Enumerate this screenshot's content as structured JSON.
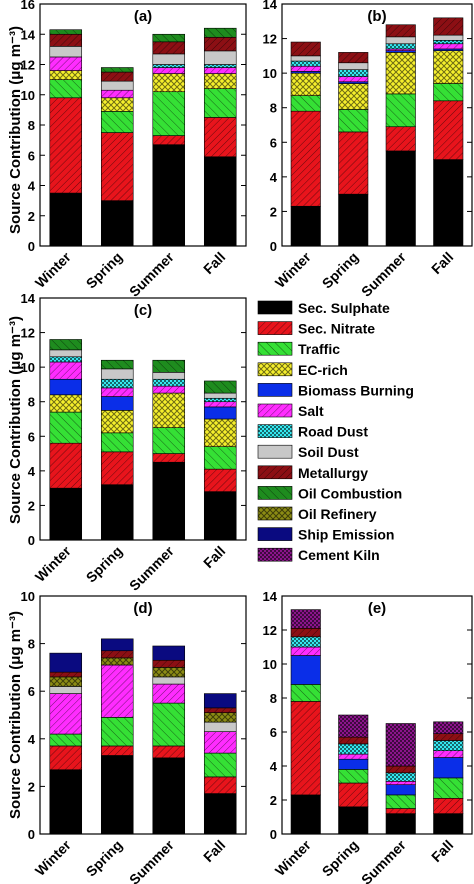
{
  "ylabel": "Source Contribution (μg m⁻³)",
  "colors": {
    "Sec. Sulphate": "#000000",
    "Sec. Nitrate": "#e8141c",
    "Traffic": "#35e035",
    "EC-rich": "#f5ef2c",
    "Biomass Burning": "#0a2ee8",
    "Salt": "#ff2cff",
    "Road Dust": "#34e8f0",
    "Soil Dust": "#c8c8c8",
    "Metallurgy": "#8c0f14",
    "Oil Combustion": "#1e8c1e",
    "Oil Refinery": "#8c8c14",
    "Ship Emission": "#0a0a80",
    "Cement Kiln": "#8c148c"
  },
  "legend": [
    "Sec. Sulphate",
    "Sec. Nitrate",
    "Traffic",
    "EC-rich",
    "Biomass Burning",
    "Salt",
    "Road Dust",
    "Soil Dust",
    "Metallurgy",
    "Oil Combustion",
    "Oil Refinery",
    "Ship Emission",
    "Cement Kiln"
  ],
  "chart_data": [
    {
      "type": "bar",
      "stacked": true,
      "title": "(a)",
      "ylabel": "Source Contribution (μg m⁻³)",
      "ylim": [
        0,
        16
      ],
      "yticks": [
        0,
        2,
        4,
        6,
        8,
        10,
        12,
        14,
        16
      ],
      "categories": [
        "Winter",
        "Spring",
        "Summer",
        "Fall"
      ],
      "series": [
        {
          "name": "Sec. Sulphate",
          "values": [
            3.5,
            3.0,
            6.7,
            5.9
          ]
        },
        {
          "name": "Sec. Nitrate",
          "values": [
            6.3,
            4.5,
            0.6,
            2.6
          ]
        },
        {
          "name": "Traffic",
          "values": [
            1.2,
            1.4,
            2.9,
            1.9
          ]
        },
        {
          "name": "EC-rich",
          "values": [
            0.6,
            0.9,
            1.2,
            1.0
          ]
        },
        {
          "name": "Salt",
          "values": [
            0.9,
            0.5,
            0.4,
            0.4
          ]
        },
        {
          "name": "Road Dust",
          "values": [
            0.0,
            0.0,
            0.2,
            0.2
          ]
        },
        {
          "name": "Soil Dust",
          "values": [
            0.7,
            0.6,
            0.7,
            0.9
          ]
        },
        {
          "name": "Metallurgy",
          "values": [
            0.8,
            0.6,
            0.8,
            0.9
          ]
        },
        {
          "name": "Oil Combustion",
          "values": [
            0.3,
            0.3,
            0.5,
            0.6
          ]
        }
      ]
    },
    {
      "type": "bar",
      "stacked": true,
      "title": "(b)",
      "ylabel": "",
      "ylim": [
        0,
        14
      ],
      "yticks": [
        0,
        2,
        4,
        6,
        8,
        10,
        12,
        14
      ],
      "categories": [
        "Winter",
        "Spring",
        "Summer",
        "Fall"
      ],
      "series": [
        {
          "name": "Sec. Sulphate",
          "values": [
            2.3,
            3.0,
            5.5,
            5.0
          ]
        },
        {
          "name": "Sec. Nitrate",
          "values": [
            5.5,
            3.6,
            1.4,
            3.4
          ]
        },
        {
          "name": "Traffic",
          "values": [
            0.9,
            1.3,
            1.9,
            1.0
          ]
        },
        {
          "name": "EC-rich",
          "values": [
            1.3,
            1.5,
            2.4,
            1.9
          ]
        },
        {
          "name": "Biomass Burning",
          "values": [
            0.1,
            0.1,
            0.1,
            0.1
          ]
        },
        {
          "name": "Salt",
          "values": [
            0.3,
            0.3,
            0.1,
            0.3
          ]
        },
        {
          "name": "Road Dust",
          "values": [
            0.3,
            0.4,
            0.3,
            0.2
          ]
        },
        {
          "name": "Soil Dust",
          "values": [
            0.3,
            0.4,
            0.4,
            0.3
          ]
        },
        {
          "name": "Metallurgy",
          "values": [
            0.8,
            0.6,
            0.7,
            1.0
          ]
        }
      ]
    },
    {
      "type": "bar",
      "stacked": true,
      "title": "(c)",
      "ylabel": "Source Contribution (μg m⁻³)",
      "ylim": [
        0,
        14
      ],
      "yticks": [
        0,
        2,
        4,
        6,
        8,
        10,
        12,
        14
      ],
      "categories": [
        "Winter",
        "Spring",
        "Summer",
        "Fall"
      ],
      "series": [
        {
          "name": "Sec. Sulphate",
          "values": [
            3.0,
            3.2,
            4.5,
            2.8
          ]
        },
        {
          "name": "Sec. Nitrate",
          "values": [
            2.6,
            1.9,
            0.5,
            1.3
          ]
        },
        {
          "name": "Traffic",
          "values": [
            1.8,
            1.1,
            1.5,
            1.3
          ]
        },
        {
          "name": "EC-rich",
          "values": [
            1.0,
            1.3,
            2.0,
            1.6
          ]
        },
        {
          "name": "Biomass Burning",
          "values": [
            0.9,
            0.8,
            0.0,
            0.7
          ]
        },
        {
          "name": "Salt",
          "values": [
            1.0,
            0.5,
            0.4,
            0.3
          ]
        },
        {
          "name": "Road Dust",
          "values": [
            0.3,
            0.5,
            0.4,
            0.2
          ]
        },
        {
          "name": "Soil Dust",
          "values": [
            0.4,
            0.6,
            0.4,
            0.3
          ]
        },
        {
          "name": "Oil Combustion",
          "values": [
            0.6,
            0.5,
            0.7,
            0.7
          ]
        }
      ]
    },
    {
      "type": "bar",
      "stacked": true,
      "title": "(d)",
      "ylabel": "Source Contribution (μg m⁻³)",
      "ylim": [
        0,
        10
      ],
      "yticks": [
        0,
        2,
        4,
        6,
        8,
        10
      ],
      "categories": [
        "Winter",
        "Spring",
        "Summer",
        "Fall"
      ],
      "series": [
        {
          "name": "Sec. Sulphate",
          "values": [
            2.7,
            3.3,
            3.2,
            1.7
          ]
        },
        {
          "name": "Sec. Nitrate",
          "values": [
            1.0,
            0.4,
            0.5,
            0.7
          ]
        },
        {
          "name": "Traffic",
          "values": [
            0.5,
            1.2,
            1.8,
            1.0
          ]
        },
        {
          "name": "Salt",
          "values": [
            1.7,
            2.2,
            0.8,
            0.9
          ]
        },
        {
          "name": "Soil Dust",
          "values": [
            0.3,
            0.0,
            0.3,
            0.4
          ]
        },
        {
          "name": "Oil Refinery",
          "values": [
            0.4,
            0.3,
            0.4,
            0.4
          ]
        },
        {
          "name": "Metallurgy",
          "values": [
            0.2,
            0.3,
            0.3,
            0.2
          ]
        },
        {
          "name": "Ship Emission",
          "values": [
            0.8,
            0.5,
            0.6,
            0.6
          ]
        }
      ]
    },
    {
      "type": "bar",
      "stacked": true,
      "title": "(e)",
      "ylabel": "",
      "ylim": [
        0,
        14
      ],
      "yticks": [
        0,
        2,
        4,
        6,
        8,
        10,
        12,
        14
      ],
      "categories": [
        "Winter",
        "Spring",
        "Summer",
        "Fall"
      ],
      "series": [
        {
          "name": "Sec. Sulphate",
          "values": [
            2.3,
            1.6,
            1.2,
            1.2
          ]
        },
        {
          "name": "Sec. Nitrate",
          "values": [
            5.5,
            1.4,
            0.3,
            0.9
          ]
        },
        {
          "name": "Traffic",
          "values": [
            1.0,
            0.8,
            0.8,
            1.2
          ]
        },
        {
          "name": "Biomass Burning",
          "values": [
            1.7,
            0.6,
            0.6,
            1.2
          ]
        },
        {
          "name": "Salt",
          "values": [
            0.5,
            0.3,
            0.2,
            0.4
          ]
        },
        {
          "name": "Road Dust",
          "values": [
            0.6,
            0.6,
            0.5,
            0.6
          ]
        },
        {
          "name": "Metallurgy",
          "values": [
            0.5,
            0.4,
            0.4,
            0.4
          ]
        },
        {
          "name": "Cement Kiln",
          "values": [
            1.1,
            1.3,
            2.5,
            0.7
          ]
        }
      ]
    }
  ]
}
